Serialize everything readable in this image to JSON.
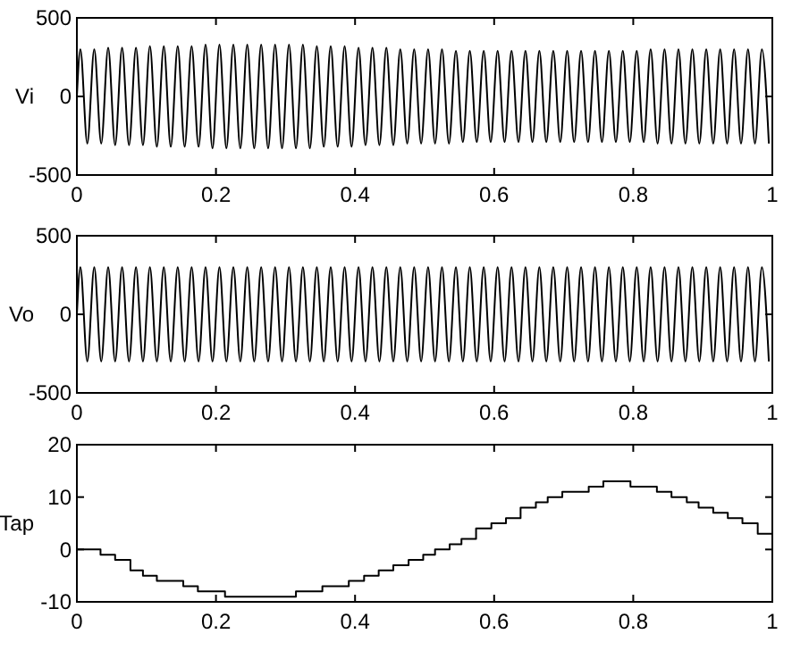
{
  "chart_data": [
    {
      "type": "line",
      "ylabel": "Vi",
      "color": "#000000",
      "xlim": [
        0,
        1
      ],
      "xticks": [
        0,
        0.2,
        0.4,
        0.6,
        0.8,
        1
      ],
      "ylim": [
        -500,
        500
      ],
      "yticks": [
        -500,
        0,
        500
      ],
      "x": [
        0,
        0.005,
        0.015,
        0.025,
        0.035,
        0.045,
        0.055,
        0.065,
        0.075,
        0.085,
        0.095,
        0.105,
        0.115,
        0.125,
        0.135,
        0.145,
        0.155,
        0.165,
        0.175,
        0.185,
        0.195,
        0.205,
        0.215,
        0.225,
        0.235,
        0.245,
        0.255,
        0.265,
        0.275,
        0.285,
        0.295,
        0.305,
        0.315,
        0.325,
        0.335,
        0.345,
        0.355,
        0.365,
        0.375,
        0.385,
        0.395,
        0.405,
        0.415,
        0.425,
        0.435,
        0.445,
        0.455,
        0.465,
        0.475,
        0.485,
        0.495,
        0.505,
        0.515,
        0.525,
        0.535,
        0.545,
        0.555,
        0.565,
        0.575,
        0.585,
        0.595,
        0.605,
        0.615,
        0.625,
        0.635,
        0.645,
        0.655,
        0.665,
        0.675,
        0.685,
        0.695,
        0.705,
        0.715,
        0.725,
        0.735,
        0.745,
        0.755,
        0.765,
        0.775,
        0.785,
        0.795,
        0.805,
        0.815,
        0.825,
        0.835,
        0.845,
        0.855,
        0.865,
        0.875,
        0.885,
        0.895,
        0.905,
        0.915,
        0.925,
        0.935,
        0.945,
        0.955,
        0.965,
        0.975,
        0.985,
        0.995
      ],
      "values": [
        0,
        300,
        -300,
        300,
        -300,
        310,
        -310,
        310,
        -310,
        310,
        -310,
        320,
        -320,
        320,
        -320,
        320,
        -320,
        320,
        -320,
        330,
        -330,
        330,
        -330,
        330,
        -330,
        330,
        -330,
        330,
        -330,
        330,
        -330,
        330,
        -330,
        330,
        -330,
        320,
        -320,
        320,
        -320,
        320,
        -320,
        310,
        -310,
        310,
        -310,
        310,
        -310,
        300,
        -300,
        300,
        -300,
        300,
        -300,
        300,
        -300,
        290,
        -290,
        290,
        -290,
        290,
        -290,
        290,
        -290,
        290,
        -290,
        290,
        -290,
        290,
        -290,
        290,
        -290,
        290,
        -290,
        290,
        -290,
        290,
        -290,
        290,
        -290,
        290,
        -290,
        290,
        -290,
        300,
        -300,
        300,
        -300,
        300,
        -300,
        300,
        -300,
        300,
        -300,
        300,
        -300,
        300,
        -300,
        300,
        -300,
        300,
        -300
      ]
    },
    {
      "type": "line",
      "ylabel": "Vo",
      "color": "#000000",
      "xlim": [
        0,
        1
      ],
      "xticks": [
        0,
        0.2,
        0.4,
        0.6,
        0.8,
        1
      ],
      "ylim": [
        -500,
        500
      ],
      "yticks": [
        -500,
        0,
        500
      ],
      "x": [
        0,
        0.005,
        0.015,
        0.025,
        0.035,
        0.045,
        0.055,
        0.065,
        0.075,
        0.085,
        0.095,
        0.105,
        0.115,
        0.125,
        0.135,
        0.145,
        0.155,
        0.165,
        0.175,
        0.185,
        0.195,
        0.205,
        0.215,
        0.225,
        0.235,
        0.245,
        0.255,
        0.265,
        0.275,
        0.285,
        0.295,
        0.305,
        0.315,
        0.325,
        0.335,
        0.345,
        0.355,
        0.365,
        0.375,
        0.385,
        0.395,
        0.405,
        0.415,
        0.425,
        0.435,
        0.445,
        0.455,
        0.465,
        0.475,
        0.485,
        0.495,
        0.505,
        0.515,
        0.525,
        0.535,
        0.545,
        0.555,
        0.565,
        0.575,
        0.585,
        0.595,
        0.605,
        0.615,
        0.625,
        0.635,
        0.645,
        0.655,
        0.665,
        0.675,
        0.685,
        0.695,
        0.705,
        0.715,
        0.725,
        0.735,
        0.745,
        0.755,
        0.765,
        0.775,
        0.785,
        0.795,
        0.805,
        0.815,
        0.825,
        0.835,
        0.845,
        0.855,
        0.865,
        0.875,
        0.885,
        0.895,
        0.905,
        0.915,
        0.925,
        0.935,
        0.945,
        0.955,
        0.965,
        0.975,
        0.985,
        0.995
      ],
      "values": [
        0,
        300,
        -300,
        300,
        -300,
        300,
        -300,
        300,
        -300,
        300,
        -300,
        300,
        -300,
        300,
        -300,
        300,
        -300,
        300,
        -300,
        300,
        -300,
        300,
        -300,
        300,
        -300,
        300,
        -300,
        300,
        -300,
        300,
        -300,
        300,
        -300,
        300,
        -300,
        300,
        -300,
        300,
        -300,
        300,
        -300,
        300,
        -300,
        300,
        -300,
        300,
        -300,
        300,
        -300,
        300,
        -300,
        300,
        -300,
        300,
        -300,
        300,
        -300,
        300,
        -300,
        300,
        -300,
        300,
        -300,
        300,
        -300,
        300,
        -300,
        300,
        -300,
        300,
        -300,
        300,
        -300,
        300,
        -300,
        300,
        -300,
        300,
        -300,
        300,
        -300,
        300,
        -300,
        300,
        -300,
        300,
        -300,
        300,
        -300,
        300,
        -300,
        300,
        -300,
        300,
        -300,
        300,
        -300,
        300,
        -300,
        300,
        -300
      ]
    },
    {
      "type": "step",
      "ylabel": "Tap",
      "color": "#000000",
      "xlim": [
        0,
        1
      ],
      "xticks": [
        0,
        0.2,
        0.4,
        0.6,
        0.8,
        1
      ],
      "ylim": [
        -10,
        20
      ],
      "yticks": [
        -10,
        0,
        10,
        20
      ],
      "x": [
        0,
        0.034,
        0.055,
        0.077,
        0.095,
        0.115,
        0.153,
        0.174,
        0.213,
        0.315,
        0.353,
        0.391,
        0.413,
        0.434,
        0.455,
        0.477,
        0.498,
        0.515,
        0.536,
        0.553,
        0.574,
        0.596,
        0.617,
        0.638,
        0.66,
        0.677,
        0.698,
        0.736,
        0.757,
        0.796,
        0.834,
        0.855,
        0.877,
        0.894,
        0.915,
        0.936,
        0.957,
        0.979,
        1
      ],
      "values": [
        0,
        -1,
        -2,
        -4,
        -5,
        -6,
        -7,
        -8,
        -9,
        -8,
        -7,
        -6,
        -5,
        -4,
        -3,
        -2,
        -1,
        0,
        1,
        2,
        4,
        5,
        6,
        8,
        9,
        10,
        11,
        12,
        13,
        12,
        11,
        10,
        9,
        8,
        7,
        6,
        5,
        3,
        3
      ]
    }
  ]
}
